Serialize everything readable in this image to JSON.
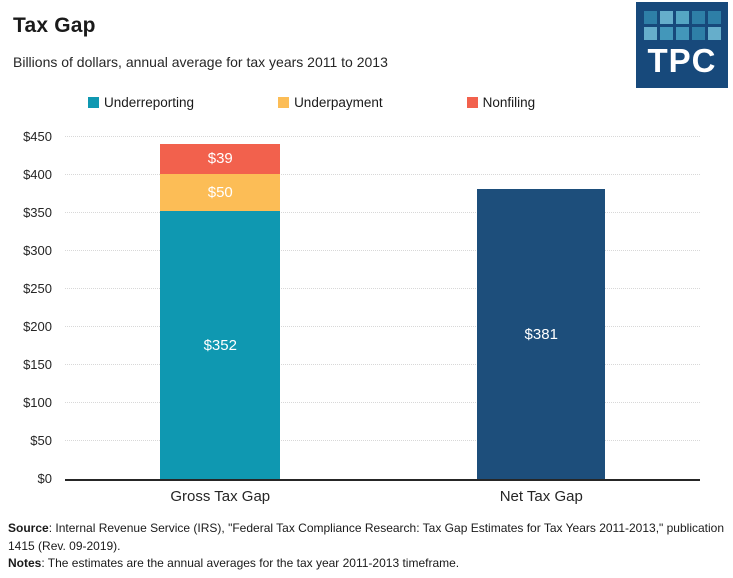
{
  "header": {
    "title": "Tax Gap",
    "subtitle": "Billions of dollars, annual average for tax years 2011 to 2013",
    "logo": {
      "text": "TPC",
      "background": "#17497b",
      "squares": [
        [
          "#2e7fa7",
          "#66aecb",
          "#55a6c3",
          "#2e7fa7",
          "#2e7fa7"
        ],
        [
          "#66aecb",
          "#4397ba",
          "#4397ba",
          "#2e7fa7",
          "#66aecb"
        ]
      ]
    }
  },
  "chart_data": {
    "type": "bar",
    "stacked": true,
    "title": "Tax Gap",
    "subtitle": "Billions of dollars, annual average for tax years 2011 to 2013",
    "categories": [
      "Gross Tax Gap",
      "Net Tax Gap"
    ],
    "series": [
      {
        "name": "Underreporting",
        "color": "#0f98b1",
        "values": [
          352,
          null
        ],
        "labels": [
          "$352",
          null
        ],
        "in_legend": true
      },
      {
        "name": "Underpayment",
        "color": "#fcbd56",
        "values": [
          50,
          null
        ],
        "labels": [
          "$50",
          null
        ],
        "in_legend": true
      },
      {
        "name": "Nonfiling",
        "color": "#f2614d",
        "values": [
          39,
          null
        ],
        "labels": [
          "$39",
          null
        ],
        "in_legend": true
      },
      {
        "name": "Net Tax Gap",
        "color": "#1d4e7b",
        "values": [
          null,
          381
        ],
        "labels": [
          null,
          "$381"
        ],
        "in_legend": false
      }
    ],
    "y_axis": {
      "min": 0,
      "max": 450,
      "step": 50,
      "ticks": [
        "$0",
        "$50",
        "$100",
        "$150",
        "$200",
        "$250",
        "$300",
        "$350",
        "$400",
        "$450"
      ],
      "gridlines": "dotted"
    },
    "ylim": [
      0,
      450
    ],
    "legend_position": "top",
    "totals": {
      "Gross Tax Gap": 441,
      "Net Tax Gap": 381
    }
  },
  "footer": {
    "source_label": "Source",
    "source_text": ": Internal Revenue Service (IRS), \"Federal Tax Compliance Research: Tax Gap Estimates for Tax Years 2011-2013,\" publication 1415 (Rev. 09-2019).",
    "notes_label": "Notes",
    "notes_text": ": The estimates are the annual averages for the tax year 2011-2013 timeframe."
  }
}
